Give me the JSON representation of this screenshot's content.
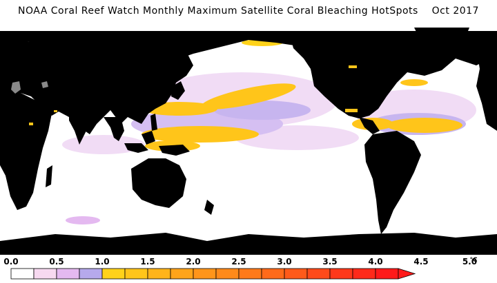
{
  "title": "NOAA Coral Reef Watch Monthly Maximum Satellite Coral Bleaching HotSpots",
  "date": "Oct 2017",
  "legend": {
    "unit": "°C",
    "labels": [
      "0.0",
      "0.5",
      "1.0",
      "1.5",
      "2.0",
      "2.5",
      "3.0",
      "3.5",
      "4.0",
      "4.5",
      "5.0"
    ],
    "bins": [
      {
        "color": "#ffffff"
      },
      {
        "color": "#f7d9f0"
      },
      {
        "color": "#e4b9f0"
      },
      {
        "color": "#b6a9ec"
      },
      {
        "color": "#ffd21a"
      },
      {
        "color": "#ffc51a"
      },
      {
        "color": "#ffb41a"
      },
      {
        "color": "#ffa41a"
      },
      {
        "color": "#ff951a"
      },
      {
        "color": "#ff8a1a"
      },
      {
        "color": "#ff7a1a"
      },
      {
        "color": "#ff6a1a"
      },
      {
        "color": "#ff5a1a"
      },
      {
        "color": "#ff4a1a"
      },
      {
        "color": "#ff381a"
      },
      {
        "color": "#ff2a1a"
      },
      {
        "color": "#ff1a1a"
      }
    ]
  },
  "colors": {
    "land": "#000000",
    "ocean": "#ffffff",
    "lake": "#8a8a8a",
    "hotspot_low": "#e9c8f2",
    "hotspot_mid": "#b6a9ec",
    "hotspot_high": "#ffc51a"
  }
}
